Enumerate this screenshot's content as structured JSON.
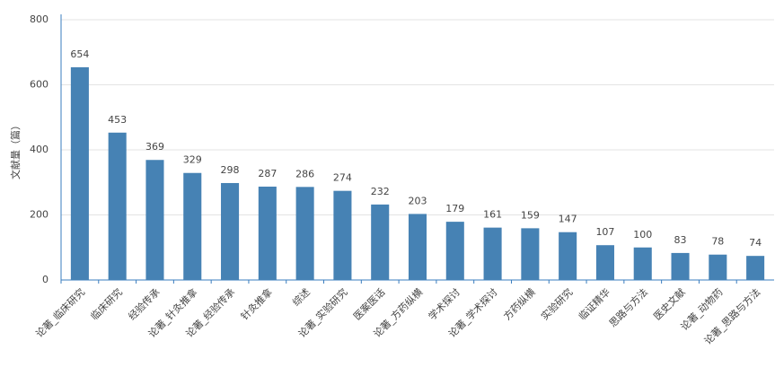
{
  "chart_data": {
    "type": "bar",
    "y_label": "文献量（篇）",
    "categories": [
      "论著_临床研究",
      "临床研究",
      "经验传承",
      "论著_针灸推拿",
      "论著_经验传承",
      "针灸推拿",
      "综述",
      "论著_实验研究",
      "医案医话",
      "论著_方药纵横",
      "学术探讨",
      "论著_学术探讨",
      "方药纵横",
      "实验研究",
      "临证精华",
      "思路与方法",
      "医史文献",
      "论著_动物药",
      "论著_思路与方法"
    ],
    "values": [
      654,
      453,
      369,
      329,
      298,
      287,
      286,
      274,
      232,
      203,
      179,
      161,
      159,
      147,
      107,
      100,
      83,
      78,
      74
    ],
    "color": "#4682b4",
    "ylim": [
      0,
      800
    ],
    "yticks": [
      0,
      200,
      400,
      600,
      800
    ],
    "grid": true
  }
}
